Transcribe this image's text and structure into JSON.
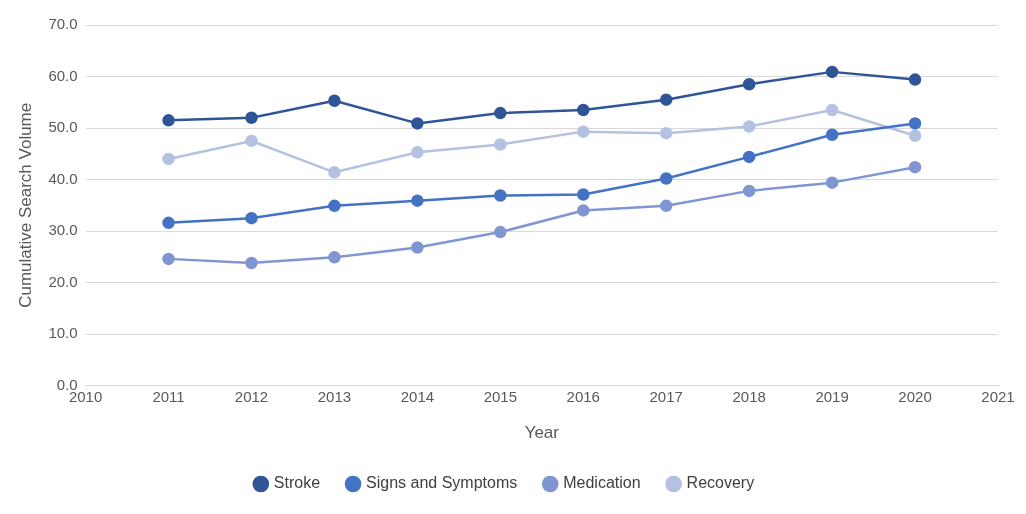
{
  "chart_data": {
    "type": "line",
    "xlabel": "Year",
    "ylabel": "Cumulative Search Volume",
    "x": [
      2011,
      2012,
      2013,
      2014,
      2015,
      2016,
      2017,
      2018,
      2019,
      2020
    ],
    "xlim": [
      2010,
      2021
    ],
    "xticks": [
      2010,
      2011,
      2012,
      2013,
      2014,
      2015,
      2016,
      2017,
      2018,
      2019,
      2020,
      2021
    ],
    "ylim": [
      0,
      70
    ],
    "yticks": [
      {
        "value": 0,
        "label": "0.0"
      },
      {
        "value": 10,
        "label": "10.0"
      },
      {
        "value": 20,
        "label": "20.0"
      },
      {
        "value": 30,
        "label": "30.0"
      },
      {
        "value": 40,
        "label": "40.0"
      },
      {
        "value": 50,
        "label": "50.0"
      },
      {
        "value": 60,
        "label": "60.0"
      },
      {
        "value": 70,
        "label": "70.0"
      }
    ],
    "grid": "y",
    "legend": "bottom",
    "marker": "circle",
    "line_style": "solid",
    "series": [
      {
        "name": "Stroke",
        "color": "#2f5597",
        "values": [
          51.5,
          52.0,
          55.3,
          50.9,
          52.9,
          53.5,
          55.5,
          58.5,
          60.9,
          59.4
        ]
      },
      {
        "name": "Signs and Symptoms",
        "color": "#4472c4",
        "values": [
          31.6,
          32.5,
          34.9,
          35.9,
          36.9,
          37.1,
          40.2,
          44.4,
          48.7,
          50.9
        ]
      },
      {
        "name": "Medication",
        "color": "#7f96d2",
        "values": [
          24.6,
          23.8,
          24.9,
          26.8,
          29.8,
          34.0,
          34.9,
          37.8,
          39.4,
          42.4
        ]
      },
      {
        "name": "Recovery",
        "color": "#b4c1e1",
        "values": [
          44.0,
          47.5,
          41.4,
          45.3,
          46.8,
          49.3,
          49.0,
          50.3,
          53.5,
          48.5
        ]
      }
    ]
  }
}
